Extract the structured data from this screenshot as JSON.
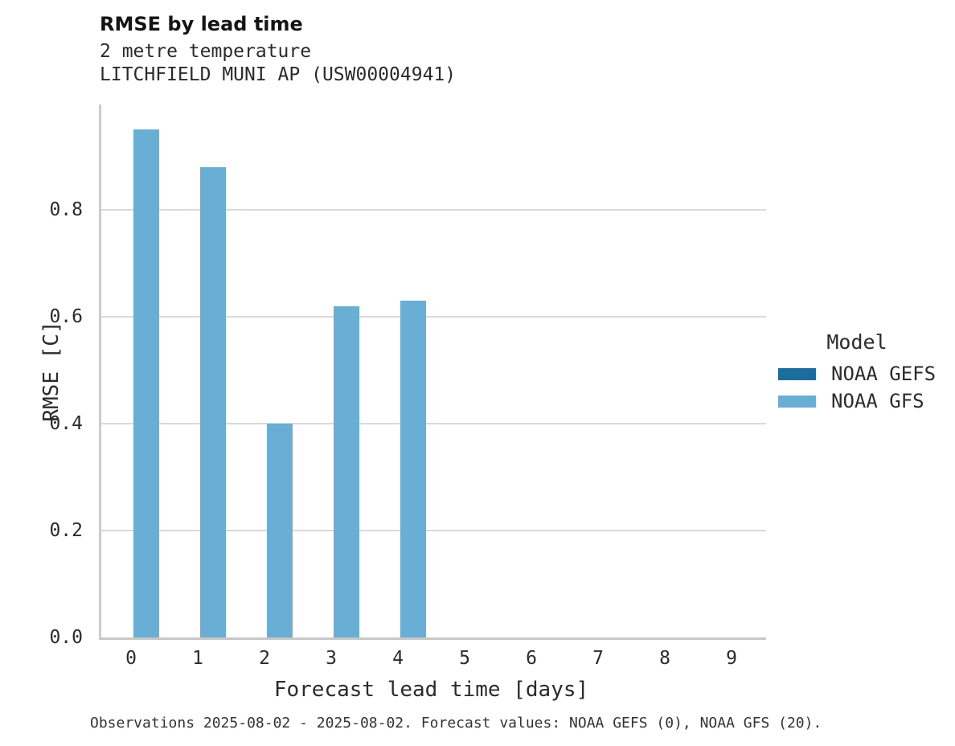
{
  "header": {
    "title": "RMSE by lead time",
    "subtitle_lines": [
      "2 metre temperature",
      "LITCHFIELD MUNI AP (USW00004941)"
    ]
  },
  "chart_data": {
    "type": "bar",
    "title": "RMSE by lead time",
    "subtitle_lines": [
      "2 metre temperature",
      "LITCHFIELD MUNI AP (USW00004941)"
    ],
    "xlabel": "Forecast lead time [days]",
    "ylabel": "RMSE [C]",
    "legend_title": "Model",
    "legend_position": "right",
    "grid": true,
    "categories": [
      0,
      1,
      2,
      3,
      4,
      5,
      6,
      7,
      8,
      9
    ],
    "x_tick_labels": [
      "0",
      "1",
      "2",
      "3",
      "4",
      "5",
      "6",
      "7",
      "8",
      "9"
    ],
    "y_ticks": [
      0.0,
      0.2,
      0.4,
      0.6,
      0.8
    ],
    "y_tick_labels": [
      "0.0",
      "0.2",
      "0.4",
      "0.6",
      "0.8"
    ],
    "ylim": [
      0,
      0.997
    ],
    "series": [
      {
        "name": "NOAA GEFS",
        "color": "#1c6d9e",
        "values": [
          null,
          null,
          null,
          null,
          null,
          null,
          null,
          null,
          null,
          null
        ]
      },
      {
        "name": "NOAA GFS",
        "color": "#69aed5",
        "values": [
          0.95,
          0.88,
          0.4,
          0.62,
          0.63,
          null,
          null,
          null,
          null,
          null
        ]
      }
    ]
  },
  "colors": {
    "grid_color": "#dadada",
    "spine_color": "#cccccc",
    "title_color": "#141414",
    "text_color": "#2b2b2b"
  },
  "footer": {
    "caption": "Observations 2025-08-02 - 2025-08-02. Forecast values: NOAA GEFS (0), NOAA GFS (20)."
  }
}
